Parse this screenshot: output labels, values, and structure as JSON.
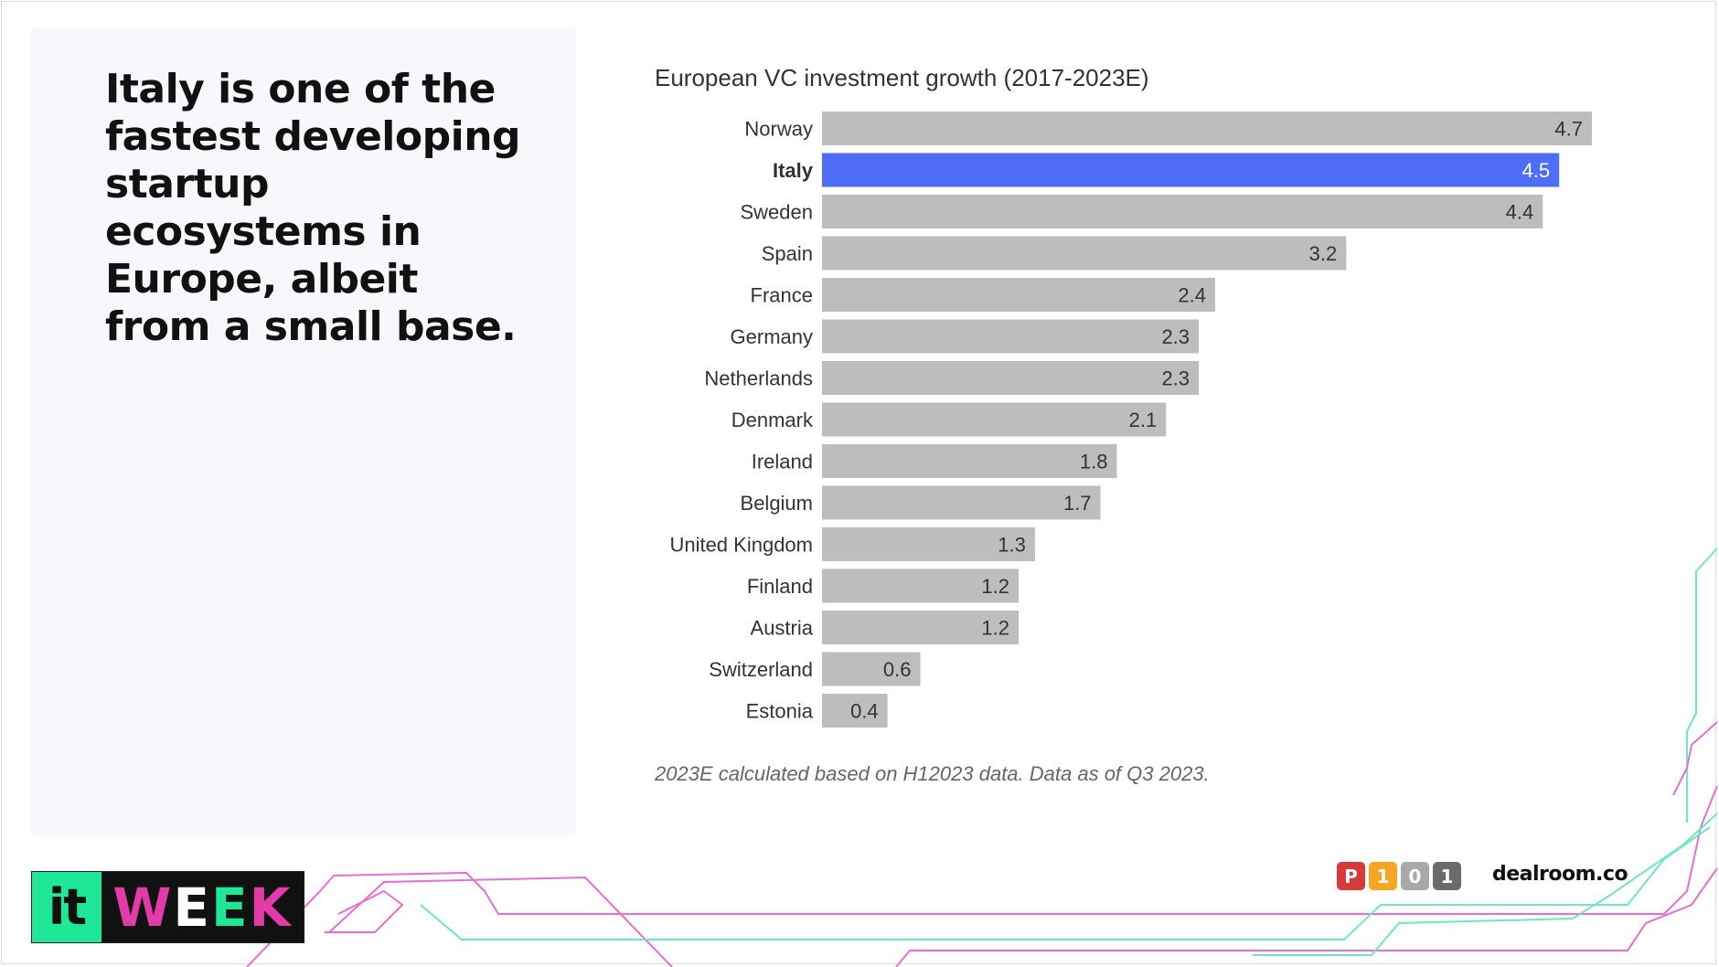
{
  "slide": {
    "headline": "Italy is one of the fastest developing startup ecosystems in Europe, albeit from a small base.",
    "footnote": "2023E calculated based on H12023 data. Data as of Q3 2023."
  },
  "logos": {
    "itweek": {
      "it": "it",
      "week": [
        "W",
        "E",
        "E",
        "K"
      ]
    },
    "p101": [
      "P",
      "1",
      "0",
      "1"
    ],
    "dealroom": "dealroom.co"
  },
  "colors": {
    "bar_default": "#bdbdbd",
    "bar_highlight": "#4f6ef7",
    "label_text": "#333333",
    "accent_green": "#1ee895",
    "accent_pink": "#e23aa8",
    "p101_red": "#d63a3a",
    "p101_orange": "#f5a623",
    "p101_gray": "#a9a9a9",
    "p101_dark": "#6b6b6b"
  },
  "chart_data": {
    "type": "bar",
    "orientation": "horizontal",
    "title": "European VC investment growth (2017-2023E)",
    "categories": [
      "Norway",
      "Italy",
      "Sweden",
      "Spain",
      "France",
      "Germany",
      "Netherlands",
      "Denmark",
      "Ireland",
      "Belgium",
      "United Kingdom",
      "Finland",
      "Austria",
      "Switzerland",
      "Estonia"
    ],
    "values": [
      4.7,
      4.5,
      4.4,
      3.2,
      2.4,
      2.3,
      2.3,
      2.1,
      1.8,
      1.7,
      1.3,
      1.2,
      1.2,
      0.6,
      0.4
    ],
    "value_labels": [
      "4.7",
      "4.5",
      "4.4",
      "3.2",
      "2.4",
      "2.3",
      "2.3",
      "2.1",
      "1.8",
      "1.7",
      "1.3",
      "1.2",
      "1.2",
      "0.6",
      "0.4"
    ],
    "highlight": "Italy",
    "xlim": [
      0,
      4.7
    ],
    "grid": false,
    "legend": false
  }
}
